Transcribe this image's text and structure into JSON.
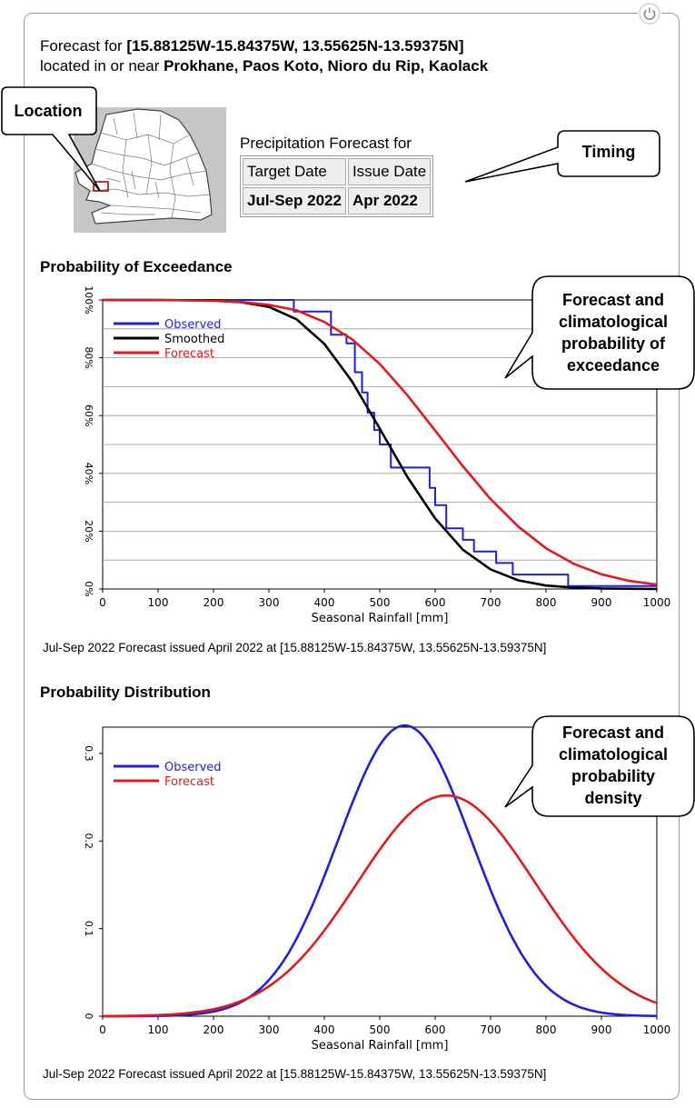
{
  "header": {
    "forecast_prefix": "Forecast for ",
    "coords": "[15.88125W-15.84375W, 13.55625N-13.59375N]",
    "located_prefix": "located in or near ",
    "places": "Prokhane, Paos Koto, Nioro du Rip, Kaolack"
  },
  "timing": {
    "title": "Precipitation Forecast for",
    "target_label": "Target Date",
    "issue_label": "Issue Date",
    "target_value": "Jul-Sep 2022",
    "issue_value": "Apr 2022"
  },
  "callouts": {
    "location": "Location",
    "timing": "Timing",
    "exceedance": [
      "Forecast and",
      "climatological",
      "probability of",
      "exceedance"
    ],
    "density": [
      "Forecast and",
      "climatological",
      "probability",
      "density"
    ]
  },
  "colors": {
    "observed": "#1f1fdf",
    "smoothed": "#000000",
    "forecast": "#e41a1a"
  },
  "chart_data": [
    {
      "type": "line",
      "title": "Probability of Exceedance",
      "xlabel": "Seasonal Rainfall [mm]",
      "ylabel": "",
      "xlim": [
        0,
        1000
      ],
      "ylim": [
        0,
        100
      ],
      "x_ticks": [
        "0",
        "100",
        "200",
        "300",
        "400",
        "500",
        "600",
        "700",
        "800",
        "900",
        "1000"
      ],
      "y_ticks": [
        "0%",
        "20%",
        "40%",
        "60%",
        "80%",
        "100%"
      ],
      "grid": true,
      "legend": [
        "Observed",
        "Smoothed",
        "Forecast"
      ],
      "legend_position": "top-left",
      "series": [
        {
          "name": "Observed",
          "step": true,
          "x": [
            0,
            345,
            345,
            412,
            412,
            440,
            440,
            455,
            455,
            468,
            468,
            478,
            478,
            490,
            490,
            500,
            500,
            520,
            520,
            590,
            590,
            600,
            600,
            620,
            620,
            650,
            650,
            670,
            670,
            710,
            710,
            740,
            740,
            840,
            840,
            1000
          ],
          "y": [
            100,
            100,
            96,
            96,
            88,
            88,
            85,
            85,
            75,
            75,
            68,
            68,
            61,
            61,
            55,
            55,
            50,
            50,
            42,
            42,
            35,
            35,
            29,
            29,
            21,
            21,
            17,
            17,
            13,
            13,
            9,
            9,
            5,
            5,
            1,
            1
          ]
        },
        {
          "name": "Smoothed",
          "x": [
            0,
            100,
            200,
            250,
            300,
            350,
            400,
            450,
            500,
            550,
            600,
            650,
            700,
            750,
            800,
            850,
            900,
            1000
          ],
          "y": [
            100,
            100,
            99.8,
            99.2,
            97.6,
            93.3,
            84.8,
            71.8,
            55.5,
            38.7,
            24.4,
            13.6,
            6.8,
            3.0,
            1.2,
            0.5,
            0.2,
            0.0
          ]
        },
        {
          "name": "Forecast",
          "x": [
            0,
            100,
            200,
            250,
            300,
            350,
            400,
            450,
            500,
            550,
            600,
            650,
            700,
            750,
            800,
            850,
            900,
            950,
            1000
          ],
          "y": [
            100,
            100,
            99.7,
            99.3,
            98.3,
            96.4,
            92.4,
            86.4,
            77.9,
            67.0,
            54.8,
            42.5,
            31.1,
            21.6,
            14.1,
            8.7,
            5.1,
            2.8,
            1.5
          ]
        }
      ]
    },
    {
      "type": "line",
      "title": "Probability Distribution",
      "xlabel": "Seasonal Rainfall [mm]",
      "ylabel": "",
      "xlim": [
        0,
        1000
      ],
      "ylim": [
        0,
        0.33
      ],
      "x_ticks": [
        "0",
        "100",
        "200",
        "300",
        "400",
        "500",
        "600",
        "700",
        "800",
        "900",
        "1000"
      ],
      "y_ticks": [
        "0",
        "0.1",
        "0.2",
        "0.3"
      ],
      "grid": false,
      "legend": [
        "Observed",
        "Forecast"
      ],
      "legend_position": "top-left",
      "series": [
        {
          "name": "Observed",
          "mean": 545,
          "sd": 120,
          "peak": 0.332
        },
        {
          "name": "Forecast",
          "mean": 620,
          "sd": 160,
          "peak": 0.252
        }
      ]
    }
  ],
  "captions": {
    "exceedance": "Jul-Sep 2022 Forecast issued April 2022 at [15.88125W-15.84375W, 13.55625N-13.59375N]",
    "distribution": "Jul-Sep 2022 Forecast issued April 2022 at [15.88125W-15.84375W, 13.55625N-13.59375N]"
  }
}
